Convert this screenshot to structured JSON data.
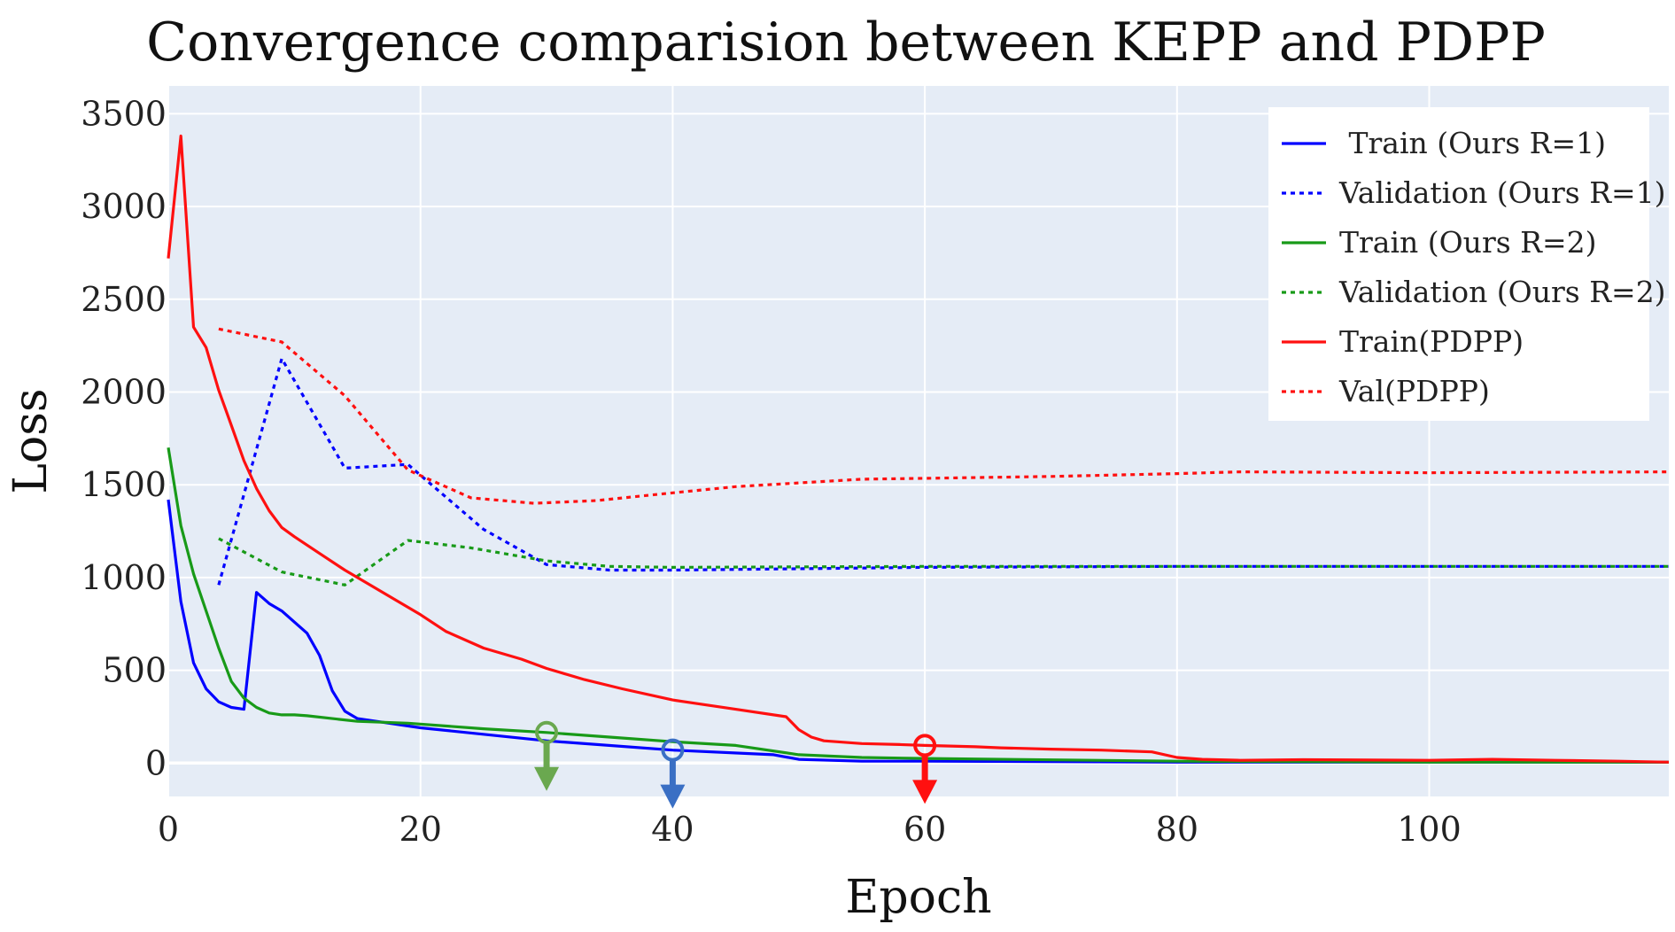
{
  "chart_data": {
    "type": "line",
    "title": "Convergence comparision between KEPP and PDPP",
    "xlabel": "Epoch",
    "ylabel": "Loss",
    "xlim": [
      0,
      119
    ],
    "ylim": [
      -180,
      3650
    ],
    "xticks": [
      0,
      20,
      40,
      60,
      80,
      100
    ],
    "yticks": [
      0,
      500,
      1000,
      1500,
      2000,
      2500,
      3000,
      3500
    ],
    "grid": true,
    "legend_position": "top-right",
    "series": [
      {
        "name": " Train (Ours R=1)",
        "color": "#0000ff",
        "dash": "solid",
        "x": [
          0,
          1,
          2,
          3,
          4,
          5,
          6,
          7,
          8,
          9,
          10,
          11,
          12,
          13,
          14,
          15,
          20,
          30,
          40,
          48,
          50,
          55,
          60,
          80,
          100,
          119
        ],
        "y": [
          1420,
          870,
          540,
          400,
          330,
          300,
          290,
          920,
          860,
          820,
          760,
          700,
          580,
          390,
          280,
          240,
          190,
          120,
          70,
          45,
          20,
          10,
          10,
          5,
          5,
          5
        ]
      },
      {
        "name": "Validation (Ours R=1)",
        "color": "#0000ff",
        "dash": "dotted",
        "x": [
          4,
          9,
          14,
          19,
          25,
          30,
          35,
          40,
          60,
          80,
          100,
          119
        ],
        "y": [
          960,
          2180,
          1590,
          1610,
          1260,
          1070,
          1040,
          1040,
          1055,
          1060,
          1060,
          1060
        ]
      },
      {
        "name": "Train (Ours R=2)",
        "color": "#189a18",
        "dash": "solid",
        "x": [
          0,
          1,
          2,
          3,
          4,
          5,
          6,
          7,
          8,
          9,
          10,
          11,
          15,
          19,
          25,
          30,
          35,
          40,
          45,
          50,
          55,
          60,
          80,
          100,
          119
        ],
        "y": [
          1700,
          1280,
          1020,
          820,
          620,
          440,
          350,
          300,
          270,
          260,
          260,
          255,
          225,
          215,
          185,
          165,
          140,
          115,
          95,
          45,
          30,
          25,
          10,
          5,
          5
        ]
      },
      {
        "name": "Validation (Ours R=2)",
        "color": "#189a18",
        "dash": "dotted",
        "x": [
          4,
          9,
          14,
          19,
          24,
          30,
          35,
          40,
          60,
          80,
          100,
          119
        ],
        "y": [
          1210,
          1030,
          960,
          1200,
          1160,
          1090,
          1060,
          1055,
          1060,
          1060,
          1060,
          1060
        ]
      },
      {
        "name": "Train(PDPP)",
        "color": "#ff1010",
        "dash": "solid",
        "x": [
          0,
          1,
          2,
          3,
          4,
          5,
          6,
          7,
          8,
          9,
          10,
          12,
          14,
          16,
          18,
          20,
          22,
          25,
          28,
          30,
          33,
          36,
          40,
          42,
          45,
          49,
          50,
          51,
          52,
          55,
          58,
          60,
          64,
          66,
          70,
          74,
          78,
          80,
          82,
          85,
          90,
          100,
          105,
          110,
          115,
          119
        ],
        "y": [
          2720,
          3380,
          2350,
          2240,
          2010,
          1820,
          1630,
          1480,
          1360,
          1270,
          1220,
          1130,
          1040,
          960,
          880,
          800,
          710,
          620,
          560,
          510,
          450,
          400,
          340,
          320,
          290,
          250,
          180,
          140,
          120,
          105,
          100,
          95,
          88,
          82,
          75,
          70,
          60,
          30,
          20,
          15,
          18,
          15,
          20,
          15,
          10,
          5
        ]
      },
      {
        "name": "Val(PDPP)",
        "color": "#ff1010",
        "dash": "dotted",
        "x": [
          4,
          9,
          14,
          19,
          24,
          29,
          34,
          39,
          45,
          50,
          55,
          60,
          70,
          80,
          85,
          100,
          119
        ],
        "y": [
          2340,
          2270,
          1980,
          1580,
          1430,
          1400,
          1415,
          1450,
          1490,
          1510,
          1530,
          1535,
          1545,
          1560,
          1570,
          1565,
          1570
        ]
      }
    ],
    "annotations": [
      {
        "label": "green-marker",
        "color": "#6aa84f",
        "x": 30,
        "y": 165,
        "description": "arrow"
      },
      {
        "label": "blue-marker",
        "color": "#3a6fc4",
        "x": 40,
        "y": 70,
        "description": "arrow"
      },
      {
        "label": "red-marker",
        "color": "#ff1010",
        "x": 60,
        "y": 95,
        "description": "arrow"
      }
    ]
  },
  "colors": {
    "plot_bg": "#e5ecf6",
    "grid": "#ffffff",
    "legend_bg": "#ffffff"
  }
}
